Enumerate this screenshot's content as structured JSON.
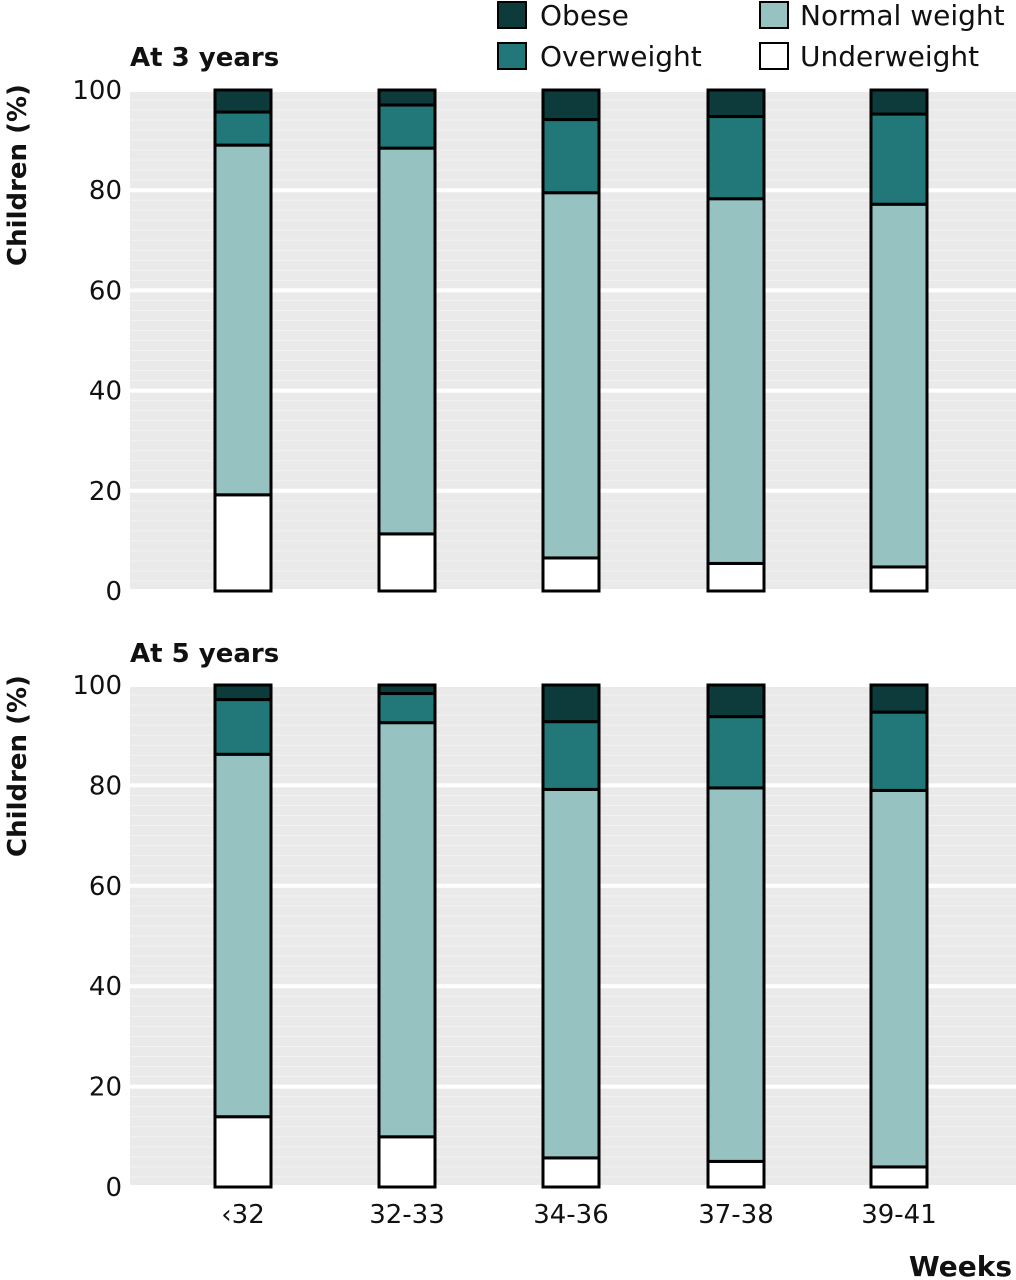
{
  "chart_data": [
    {
      "type": "bar",
      "stacked": true,
      "title": "At 3 years",
      "xlabel": "",
      "ylabel": "Children (%)",
      "ylim": [
        0,
        100
      ],
      "yticks": [
        0,
        20,
        40,
        60,
        80,
        100
      ],
      "grid": true,
      "categories": [
        "‹32",
        "32-33",
        "34-36",
        "37-38",
        "39-41"
      ],
      "series": [
        {
          "name": "Underweight",
          "values": [
            19.2,
            11.4,
            6.6,
            5.5,
            4.8
          ]
        },
        {
          "name": "Normal weight",
          "values": [
            69.8,
            77.0,
            72.9,
            72.8,
            72.4
          ]
        },
        {
          "name": "Overweight",
          "values": [
            6.6,
            8.6,
            14.6,
            16.4,
            18.0
          ]
        },
        {
          "name": "Obese",
          "values": [
            4.4,
            3.0,
            5.9,
            5.3,
            4.8
          ]
        }
      ]
    },
    {
      "type": "bar",
      "stacked": true,
      "title": "At 5 years",
      "xlabel": "Weeks",
      "ylabel": "Children (%)",
      "ylim": [
        0,
        100
      ],
      "yticks": [
        0,
        20,
        40,
        60,
        80,
        100
      ],
      "grid": true,
      "categories": [
        "‹32",
        "32-33",
        "34-36",
        "37-38",
        "39-41"
      ],
      "series": [
        {
          "name": "Underweight",
          "values": [
            14.0,
            10.0,
            5.8,
            5.1,
            4.0
          ]
        },
        {
          "name": "Normal weight",
          "values": [
            72.2,
            82.5,
            73.4,
            74.4,
            75.0
          ]
        },
        {
          "name": "Overweight",
          "values": [
            10.9,
            5.8,
            13.5,
            14.2,
            15.6
          ]
        },
        {
          "name": "Obese",
          "values": [
            2.9,
            1.7,
            7.3,
            6.3,
            5.4
          ]
        }
      ]
    }
  ],
  "legend": {
    "placement": "top-right",
    "items": [
      {
        "label": "Obese",
        "color": "#0d3a3a"
      },
      {
        "label": "Normal weight",
        "color": "#97c2c2"
      },
      {
        "label": "Overweight",
        "color": "#227878"
      },
      {
        "label": "Underweight",
        "color": "#ffffff"
      }
    ]
  },
  "colors": {
    "Obese": "#0d3a3a",
    "Overweight": "#227878",
    "Normal weight": "#97c2c2",
    "Underweight": "#ffffff",
    "plot_background": "#eaeaea",
    "gridline": "#ffffff",
    "bar_outline": "#000000"
  }
}
